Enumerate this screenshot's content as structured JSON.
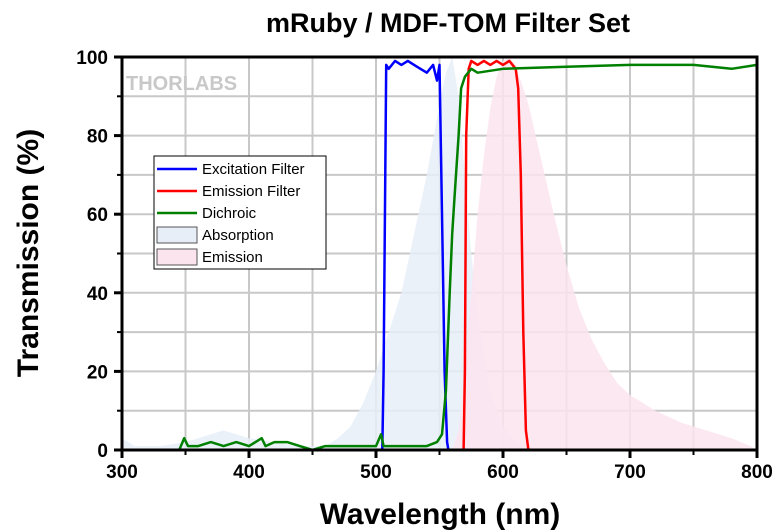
{
  "chart_data": {
    "type": "line",
    "title": "mRuby / MDF-TOM Filter Set",
    "xlabel": "Wavelength (nm)",
    "ylabel": "Transmission (%)",
    "xlim": [
      300,
      800
    ],
    "ylim": [
      0,
      100
    ],
    "xticks": [
      300,
      400,
      500,
      600,
      700,
      800
    ],
    "yticks": [
      0,
      20,
      40,
      60,
      80,
      100
    ],
    "grid": true,
    "watermark": "THORLABS",
    "legend_position": "center-left",
    "series": [
      {
        "name": "Excitation Filter",
        "type": "line",
        "color": "#0000ff",
        "x": [
          300,
          505,
          506,
          508,
          510,
          515,
          520,
          525,
          530,
          535,
          540,
          545,
          548,
          550,
          552,
          554,
          556,
          557,
          800
        ],
        "y": [
          0,
          0,
          20,
          98,
          97,
          99,
          98,
          99,
          98,
          97,
          96,
          98,
          94,
          98,
          60,
          20,
          2,
          0,
          0
        ]
      },
      {
        "name": "Emission Filter",
        "type": "line",
        "color": "#ff0000",
        "x": [
          300,
          569,
          570,
          571,
          573,
          575,
          580,
          585,
          590,
          595,
          600,
          605,
          610,
          612,
          614,
          616,
          618,
          620,
          800
        ],
        "y": [
          0,
          0,
          20,
          80,
          97,
          99,
          98,
          99,
          98,
          99,
          98,
          99,
          97,
          92,
          70,
          30,
          5,
          0,
          0
        ]
      },
      {
        "name": "Dichroic",
        "type": "line",
        "color": "#008000",
        "x": [
          300,
          345,
          349,
          352,
          360,
          370,
          380,
          390,
          400,
          410,
          413,
          420,
          430,
          440,
          450,
          460,
          470,
          480,
          490,
          500,
          504,
          506,
          510,
          520,
          530,
          540,
          548,
          552,
          555,
          558,
          560,
          562,
          565,
          567,
          570,
          575,
          580,
          600,
          650,
          700,
          750,
          780,
          800
        ],
        "y": [
          0,
          0,
          3,
          1,
          1,
          2,
          1,
          2,
          1,
          3,
          1,
          2,
          2,
          1,
          0,
          1,
          1,
          1,
          1,
          1,
          4,
          1,
          1,
          1,
          1,
          1,
          2,
          4,
          15,
          40,
          55,
          65,
          80,
          92,
          95,
          97,
          96,
          97,
          97.5,
          98,
          98,
          97,
          98
        ]
      },
      {
        "name": "Absorption",
        "type": "area",
        "color": "#e8eef8",
        "x": [
          300,
          310,
          330,
          350,
          370,
          380,
          400,
          420,
          440,
          460,
          470,
          480,
          490,
          500,
          510,
          520,
          530,
          540,
          550,
          555,
          560,
          565,
          570,
          575,
          580,
          590,
          600,
          610,
          620
        ],
        "y": [
          3,
          1,
          1,
          2,
          4,
          5,
          3,
          2,
          1,
          1,
          3,
          6,
          12,
          20,
          30,
          40,
          55,
          70,
          88,
          96,
          100,
          90,
          70,
          50,
          35,
          15,
          6,
          2,
          0
        ]
      },
      {
        "name": "Emission",
        "type": "area",
        "color": "#fbe4ee",
        "x": [
          560,
          565,
          570,
          575,
          580,
          585,
          590,
          595,
          600,
          605,
          610,
          620,
          630,
          640,
          650,
          660,
          670,
          680,
          690,
          700,
          720,
          740,
          760,
          780,
          795,
          800
        ],
        "y": [
          0,
          5,
          20,
          40,
          60,
          75,
          87,
          95,
          99,
          100,
          98,
          88,
          74,
          60,
          47,
          36,
          28,
          22,
          17,
          14,
          10,
          7,
          5,
          3,
          1,
          0
        ]
      }
    ]
  }
}
